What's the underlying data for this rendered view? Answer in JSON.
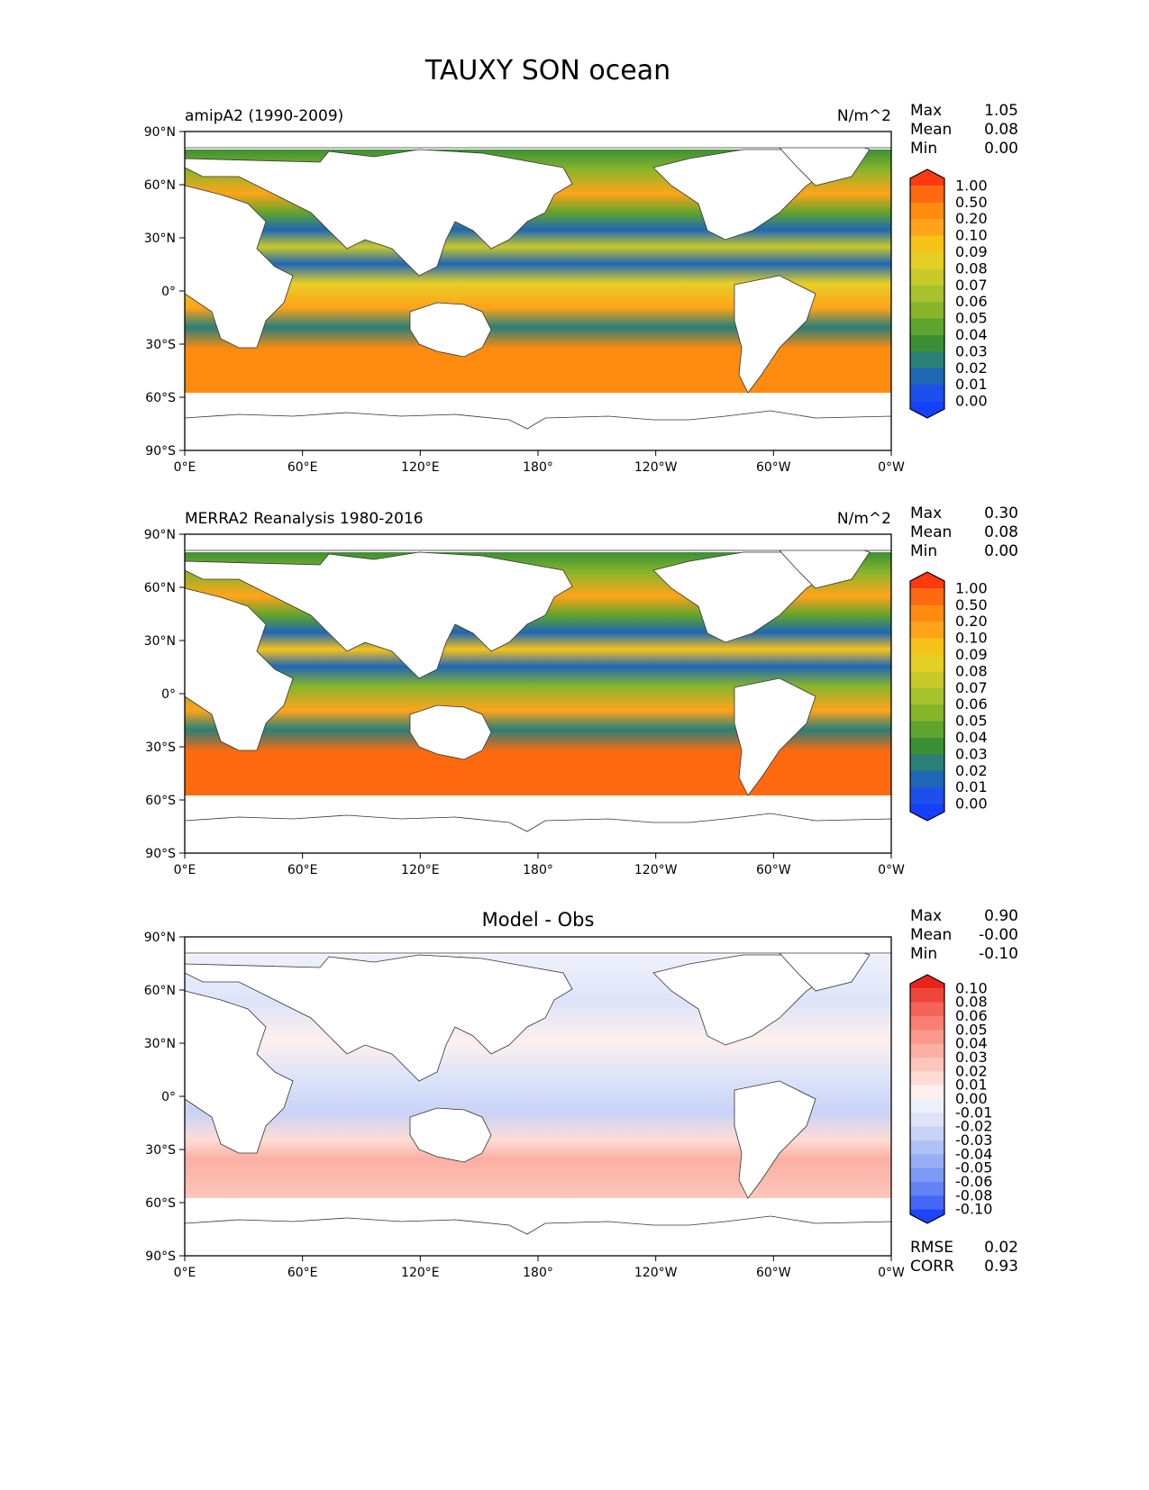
{
  "figure": {
    "title": "TAUXY SON ocean"
  },
  "axes": {
    "lat_labels": [
      "90°N",
      "60°N",
      "30°N",
      "0°",
      "30°S",
      "60°S",
      "90°S"
    ],
    "lon_labels": [
      "0°E",
      "60°E",
      "120°E",
      "180°",
      "120°W",
      "60°W",
      "0°W"
    ]
  },
  "panels": [
    {
      "left_title": "amipA2 (1990-2009)",
      "center_title": "",
      "units": "N/m^2",
      "stats": [
        {
          "label": "Max",
          "value": "1.05"
        },
        {
          "label": "Mean",
          "value": "0.08"
        },
        {
          "label": "Min",
          "value": "0.00"
        }
      ],
      "colorbar": {
        "labels": [
          "1.00",
          "0.50",
          "0.20",
          "0.10",
          "0.09",
          "0.08",
          "0.07",
          "0.06",
          "0.05",
          "0.04",
          "0.03",
          "0.02",
          "0.01",
          "0.00"
        ],
        "colors": [
          "#ff3a10",
          "#ff6a10",
          "#ff8c10",
          "#ffa41a",
          "#f6c21a",
          "#e6cf24",
          "#c9c92a",
          "#a8c22e",
          "#86b52a",
          "#5fa42c",
          "#3b8f35",
          "#2a7f78",
          "#1f66b6",
          "#1d4fea",
          "#1540ff"
        ]
      },
      "footer_stats": []
    },
    {
      "left_title": "MERRA2 Reanalysis 1980-2016",
      "center_title": "",
      "units": "N/m^2",
      "stats": [
        {
          "label": "Max",
          "value": "0.30"
        },
        {
          "label": "Mean",
          "value": "0.08"
        },
        {
          "label": "Min",
          "value": "0.00"
        }
      ],
      "colorbar": {
        "labels": [
          "1.00",
          "0.50",
          "0.20",
          "0.10",
          "0.09",
          "0.08",
          "0.07",
          "0.06",
          "0.05",
          "0.04",
          "0.03",
          "0.02",
          "0.01",
          "0.00"
        ],
        "colors": [
          "#ff3a10",
          "#ff6a10",
          "#ff8c10",
          "#ffa41a",
          "#f6c21a",
          "#e6cf24",
          "#c9c92a",
          "#a8c22e",
          "#86b52a",
          "#5fa42c",
          "#3b8f35",
          "#2a7f78",
          "#1f66b6",
          "#1d4fea",
          "#1540ff"
        ]
      },
      "footer_stats": []
    },
    {
      "left_title": "",
      "center_title": "Model - Obs",
      "units": "",
      "stats": [
        {
          "label": "Max",
          "value": "0.90"
        },
        {
          "label": "Mean",
          "value": "-0.00"
        },
        {
          "label": "Min",
          "value": "-0.10"
        }
      ],
      "colorbar": {
        "labels": [
          "0.10",
          "0.08",
          "0.06",
          "0.05",
          "0.04",
          "0.03",
          "0.02",
          "0.01",
          "0.00",
          "-0.01",
          "-0.02",
          "-0.03",
          "-0.04",
          "-0.05",
          "-0.06",
          "-0.08",
          "-0.10"
        ],
        "colors": [
          "#e8251a",
          "#f0453a",
          "#f56458",
          "#f87f72",
          "#fa988b",
          "#fcafa3",
          "#fdc6bc",
          "#fedcd5",
          "#fff0ed",
          "#eef1fb",
          "#dde4f8",
          "#c8d3f6",
          "#b0c1f5",
          "#97adf5",
          "#7d98f5",
          "#6282f6",
          "#4368f8",
          "#1d45fd"
        ]
      },
      "footer_stats": [
        {
          "label": "RMSE",
          "value": "0.02"
        },
        {
          "label": "CORR",
          "value": "0.93"
        }
      ]
    }
  ]
}
